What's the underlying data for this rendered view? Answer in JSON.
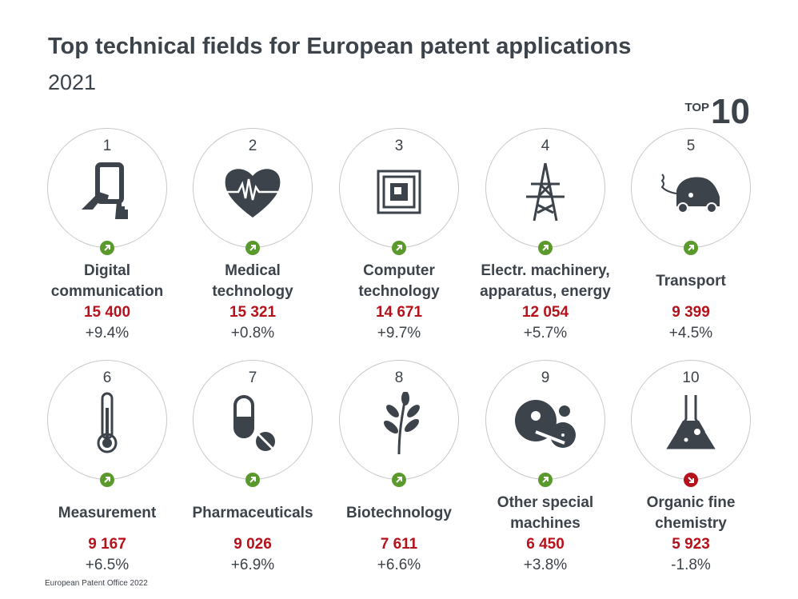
{
  "title": "Top technical fields for European patent applications",
  "subtitle": "2021",
  "badge": {
    "prefix": "TOP",
    "number": "10"
  },
  "colors": {
    "text": "#3d434b",
    "value": "#b5121b",
    "up": "#5a9a2c",
    "down": "#b5121b"
  },
  "fields": [
    {
      "rank": "1",
      "label": "Digital\ncommunication",
      "value": "15 400",
      "change": "+9.4%",
      "trend": "up",
      "icon": "tablet-hand-icon"
    },
    {
      "rank": "2",
      "label": "Medical\ntechnology",
      "value": "15 321",
      "change": "+0.8%",
      "trend": "up",
      "icon": "heart-pulse-icon"
    },
    {
      "rank": "3",
      "label": "Computer\ntechnology",
      "value": "14 671",
      "change": "+9.7%",
      "trend": "up",
      "icon": "chip-icon"
    },
    {
      "rank": "4",
      "label": "Electr. machinery,\napparatus, energy",
      "value": "12 054",
      "change": "+5.7%",
      "trend": "up",
      "icon": "power-pylon-icon"
    },
    {
      "rank": "5",
      "label": "Transport",
      "value": "9 399",
      "change": "+4.5%",
      "trend": "up",
      "icon": "electric-car-icon"
    },
    {
      "rank": "6",
      "label": "Measurement",
      "value": "9 167",
      "change": "+6.5%",
      "trend": "up",
      "icon": "thermometer-icon"
    },
    {
      "rank": "7",
      "label": "Pharmaceuticals",
      "value": "9 026",
      "change": "+6.9%",
      "trend": "up",
      "icon": "pill-icon"
    },
    {
      "rank": "8",
      "label": "Biotechnology",
      "value": "7 611",
      "change": "+6.6%",
      "trend": "up",
      "icon": "leaf-icon"
    },
    {
      "rank": "9",
      "label": "Other special\nmachines",
      "value": "6 450",
      "change": "+3.8%",
      "trend": "up",
      "icon": "gears-icon"
    },
    {
      "rank": "10",
      "label": "Organic fine\nchemistry",
      "value": "5 923",
      "change": "-1.8%",
      "trend": "down",
      "icon": "flask-icon"
    }
  ],
  "footer": "European Patent Office 2022"
}
